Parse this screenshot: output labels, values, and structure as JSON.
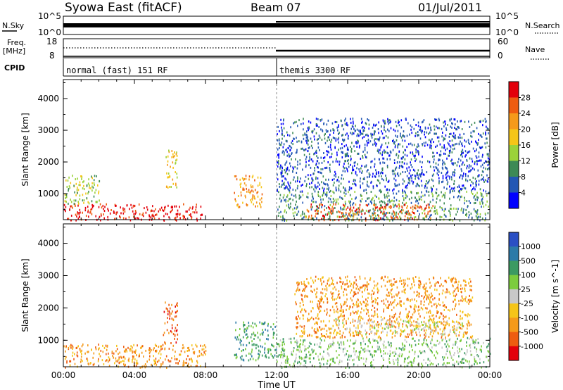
{
  "header": {
    "station": "Syowa East (fitACF)",
    "beam": "Beam 07",
    "date": "01/Jul/2011"
  },
  "top_panels": {
    "nsky_label": "N.Sky",
    "nsearch_label": "N.Search",
    "nsky_ticks": [
      "10^5",
      "10^0"
    ],
    "nsearch_ticks": [
      "10^5",
      "10^0"
    ],
    "freq_label_1": "Freq.",
    "freq_label_2": "[MHz]",
    "freq_ticks": [
      "18",
      "8"
    ],
    "nave_label": "Nave",
    "nave_ticks": [
      "60",
      "0"
    ],
    "cpid_label": "CPID",
    "cpid_segments": [
      {
        "start_hour": 0,
        "end_hour": 12,
        "label": "normal (fast) 151 RF"
      },
      {
        "start_hour": 12,
        "end_hour": 24,
        "label": "themis 3300 RF"
      }
    ]
  },
  "chart_data": [
    {
      "type": "heatmap",
      "title": "",
      "ylabel": "Slant Range [km]",
      "xlabel": "",
      "x_ticks": [
        "00:00",
        "04:00",
        "08:00",
        "12:00",
        "16:00",
        "20:00",
        "00:00"
      ],
      "xlim_hours": [
        0,
        24
      ],
      "ylim": [
        180,
        4600
      ],
      "y_ticks": [
        1000,
        2000,
        3000,
        4000
      ],
      "colorbar": {
        "label": "Power [dB]",
        "ticks": [
          "4",
          "8",
          "12",
          "16",
          "20",
          "24",
          "28"
        ],
        "colors": [
          "#0000ff",
          "#2357b4",
          "#3d8a55",
          "#9bd23a",
          "#f5c518",
          "#f59a1a",
          "#ee5c10",
          "#e3000b"
        ]
      },
      "regions": [
        {
          "t0": 0.0,
          "t1": 7.8,
          "r0": 180,
          "r1": 700,
          "level": 7
        },
        {
          "t0": 0.0,
          "t1": 2.0,
          "r0": 700,
          "r1": 1600,
          "level": 3
        },
        {
          "t0": 5.7,
          "t1": 6.4,
          "r0": 1200,
          "r1": 2400,
          "level": 4
        },
        {
          "t0": 9.6,
          "t1": 11.2,
          "r0": 600,
          "r1": 1600,
          "level": 5
        },
        {
          "t0": 12.0,
          "t1": 24.0,
          "r0": 180,
          "r1": 1100,
          "level": 2
        },
        {
          "t0": 12.0,
          "t1": 24.0,
          "r0": 1100,
          "r1": 3400,
          "level": 1
        },
        {
          "t0": 13.6,
          "t1": 20.8,
          "r0": 180,
          "r1": 700,
          "level": 6
        }
      ]
    },
    {
      "type": "heatmap",
      "title": "",
      "ylabel": "Slant Range [km]",
      "xlabel": "Time UT",
      "x_ticks": [
        "00:00",
        "04:00",
        "08:00",
        "12:00",
        "16:00",
        "20:00",
        "00:00"
      ],
      "xlim_hours": [
        0,
        24
      ],
      "ylim": [
        180,
        4600
      ],
      "y_ticks": [
        1000,
        2000,
        3000,
        4000
      ],
      "colorbar": {
        "label": "Velocity [m s^-1]",
        "ticks": [
          "1000",
          "500",
          "100",
          "25",
          "-25",
          "-100",
          "-500",
          "-1000"
        ],
        "colors": [
          "#2a4fc4",
          "#2c7aa8",
          "#3b9a62",
          "#7ccc3d",
          "#c8c8c8",
          "#f5c518",
          "#f59a1a",
          "#ee5c10",
          "#e3000b"
        ]
      },
      "regions": [
        {
          "t0": 0.0,
          "t1": 8.0,
          "r0": 180,
          "r1": 900,
          "level": 6
        },
        {
          "t0": 5.6,
          "t1": 6.4,
          "r0": 900,
          "r1": 2200,
          "level": 7
        },
        {
          "t0": 9.6,
          "t1": 12.0,
          "r0": 400,
          "r1": 1600,
          "level": 2
        },
        {
          "t0": 12.0,
          "t1": 24.0,
          "r0": 180,
          "r1": 1100,
          "level": 3
        },
        {
          "t0": 13.0,
          "t1": 23.0,
          "r0": 1100,
          "r1": 3000,
          "level": 6
        },
        {
          "t0": 15.0,
          "t1": 22.5,
          "r0": 1200,
          "r1": 1700,
          "level": 4
        }
      ]
    }
  ]
}
